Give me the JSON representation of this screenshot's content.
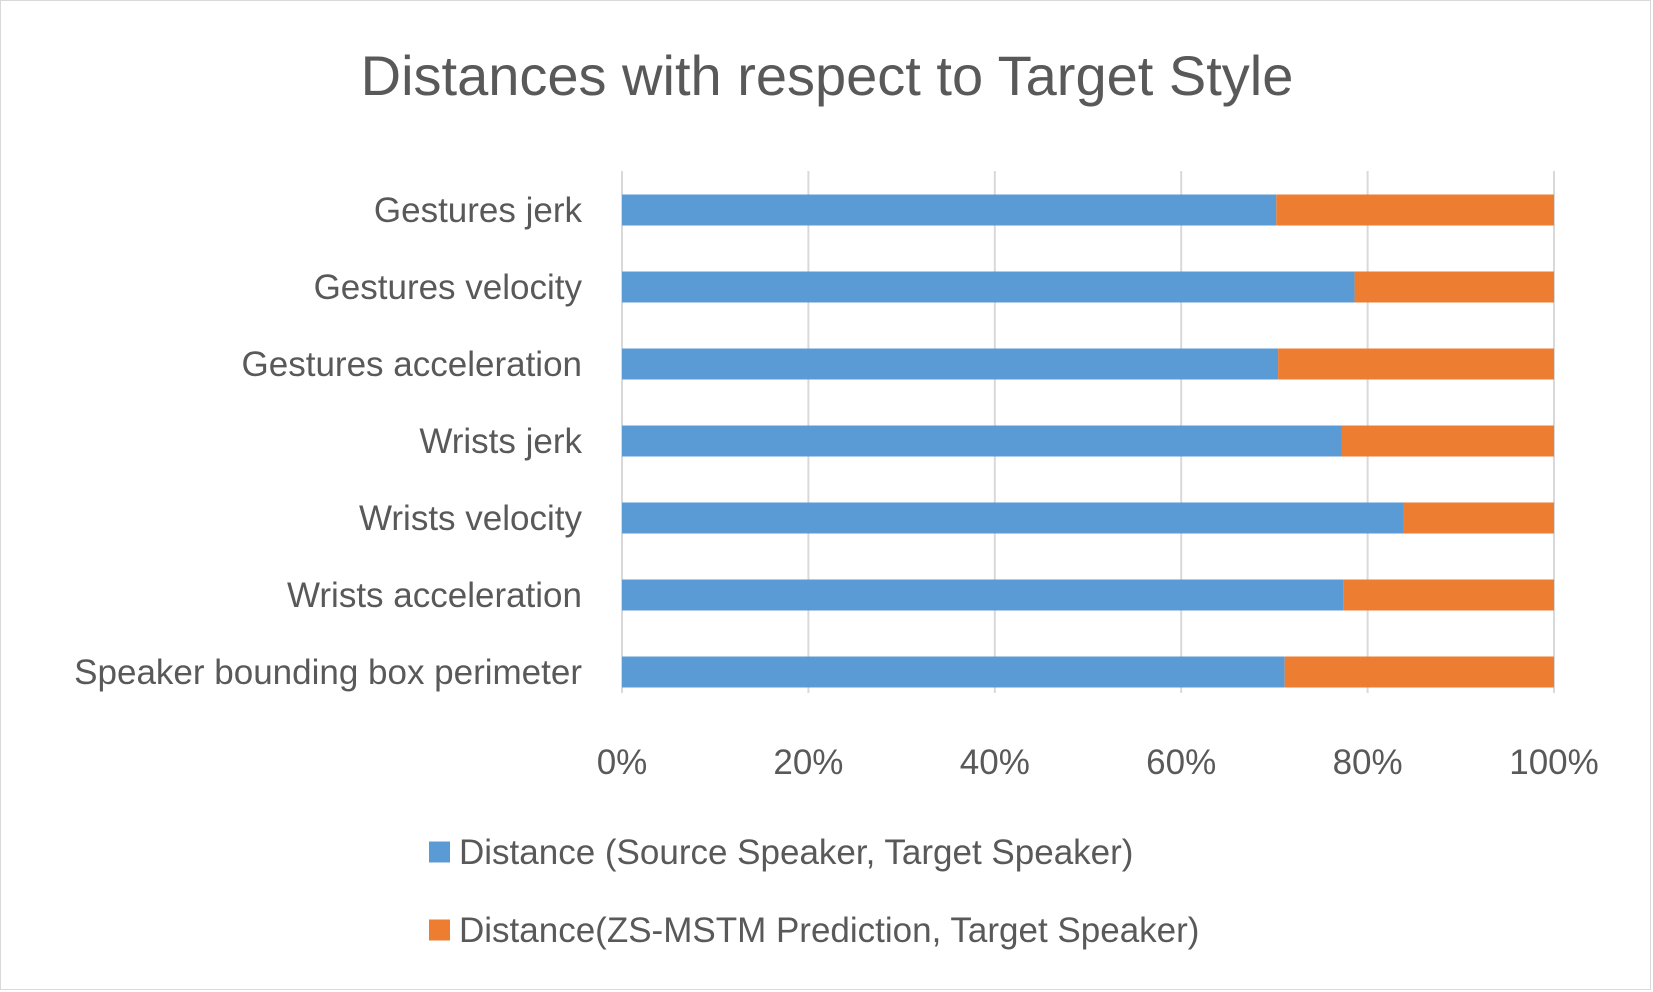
{
  "chart_data": {
    "type": "bar",
    "orientation": "horizontal",
    "stacking": "percent",
    "title": "Distances with respect to Target Style",
    "categories": [
      "Gestures jerk",
      "Gestures velocity",
      "Gestures acceleration",
      "Wrists jerk",
      "Wrists velocity",
      "Wrists acceleration",
      "Speaker bounding box perimeter"
    ],
    "series": [
      {
        "name": "Distance (Source Speaker, Target Speaker)",
        "color": "#5B9BD5",
        "values": [
          70.2,
          78.6,
          70.4,
          77.2,
          83.9,
          77.4,
          71.1
        ]
      },
      {
        "name": "Distance(ZS-MSTM Prediction, Target Speaker)",
        "color": "#ED7D31",
        "values": [
          29.8,
          21.4,
          29.6,
          22.8,
          16.1,
          22.6,
          28.9
        ]
      }
    ],
    "xlim": [
      0,
      100
    ],
    "xticks": [
      "0%",
      "20%",
      "40%",
      "60%",
      "80%",
      "100%"
    ],
    "grid": true,
    "legend_position": "bottom"
  }
}
